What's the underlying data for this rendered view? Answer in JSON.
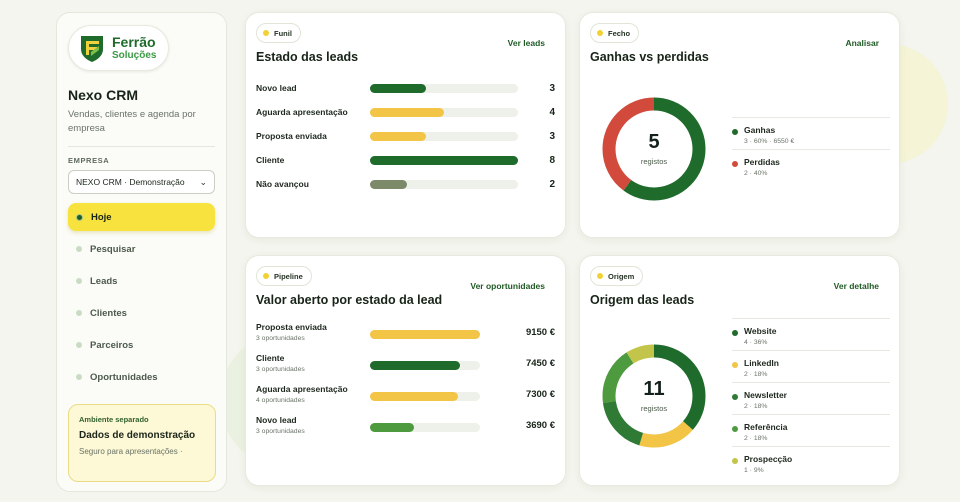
{
  "colors": {
    "dark_green": "#1f6b2b",
    "mid_green": "#4e9a3f",
    "yellow": "#f2c546",
    "olive": "#7c8a69",
    "red": "#d24a3c",
    "olive_yellow": "#c2c54a",
    "accent_yellow": "#f8e23e"
  },
  "brand": {
    "name": "Ferrão",
    "tagline": "Soluções"
  },
  "sidebar": {
    "app_title": "Nexo CRM",
    "app_subtitle": "Vendas, clientes e agenda por empresa",
    "company_label": "EMPRESA",
    "company_selected": "NEXO CRM · Demonstração",
    "nav": [
      {
        "label": "Hoje",
        "active": true
      },
      {
        "label": "Pesquisar"
      },
      {
        "label": "Leads"
      },
      {
        "label": "Clientes"
      },
      {
        "label": "Parceiros"
      },
      {
        "label": "Oportunidades"
      }
    ],
    "demo": {
      "tag": "Ambiente separado",
      "title": "Dados de demonstração",
      "subtitle": "Seguro para apresentações ·"
    }
  },
  "funil": {
    "pill": "Funil",
    "title": "Estado das leads",
    "link": "Ver leads",
    "max": 8,
    "rows": [
      {
        "label": "Novo lead",
        "value": 3,
        "color": "#1f6b2b"
      },
      {
        "label": "Aguarda apresentação",
        "value": 4,
        "color": "#f2c546"
      },
      {
        "label": "Proposta enviada",
        "value": 3,
        "color": "#f2c546"
      },
      {
        "label": "Cliente",
        "value": 8,
        "color": "#1f6b2b"
      },
      {
        "label": "Não avançou",
        "value": 2,
        "color": "#7c8a69"
      }
    ]
  },
  "fecho": {
    "pill": "Fecho",
    "title": "Ganhas vs perdidas",
    "link": "Analisar",
    "total": "5",
    "total_label": "registos",
    "items": [
      {
        "name": "Ganhas",
        "detail": "3 · 60% · 6550 €",
        "share": 0.6,
        "color": "#1f6b2b"
      },
      {
        "name": "Perdidas",
        "detail": "2 · 40%",
        "share": 0.4,
        "color": "#d24a3c"
      }
    ]
  },
  "pipeline": {
    "pill": "Pipeline",
    "title": "Valor aberto por estado da lead",
    "link": "Ver oportunidades",
    "max": 9150,
    "rows": [
      {
        "label": "Proposta enviada",
        "sub": "3 oportunidades",
        "amount": 9150,
        "value": "9150 €",
        "color": "#f2c546"
      },
      {
        "label": "Cliente",
        "sub": "3 oportunidades",
        "amount": 7450,
        "value": "7450 €",
        "color": "#1f6b2b"
      },
      {
        "label": "Aguarda apresentação",
        "sub": "4 oportunidades",
        "amount": 7300,
        "value": "7300 €",
        "color": "#f2c546"
      },
      {
        "label": "Novo lead",
        "sub": "3 oportunidades",
        "amount": 3690,
        "value": "3690 €",
        "color": "#4e9a3f"
      }
    ]
  },
  "origem": {
    "pill": "Origem",
    "title": "Origem das leads",
    "link": "Ver detalhe",
    "total": "11",
    "total_label": "registos",
    "items": [
      {
        "name": "Website",
        "detail": "4 · 36%",
        "share": 0.3636,
        "color": "#1f6b2b"
      },
      {
        "name": "LinkedIn",
        "detail": "2 · 18%",
        "share": 0.1818,
        "color": "#f2c546"
      },
      {
        "name": "Newsletter",
        "detail": "2 · 18%",
        "share": 0.1818,
        "color": "#2f7a35"
      },
      {
        "name": "Referência",
        "detail": "2 · 18%",
        "share": 0.1818,
        "color": "#4e9a3f"
      },
      {
        "name": "Prospecção",
        "detail": "1 · 9%",
        "share": 0.0909,
        "color": "#c2c54a"
      }
    ]
  }
}
